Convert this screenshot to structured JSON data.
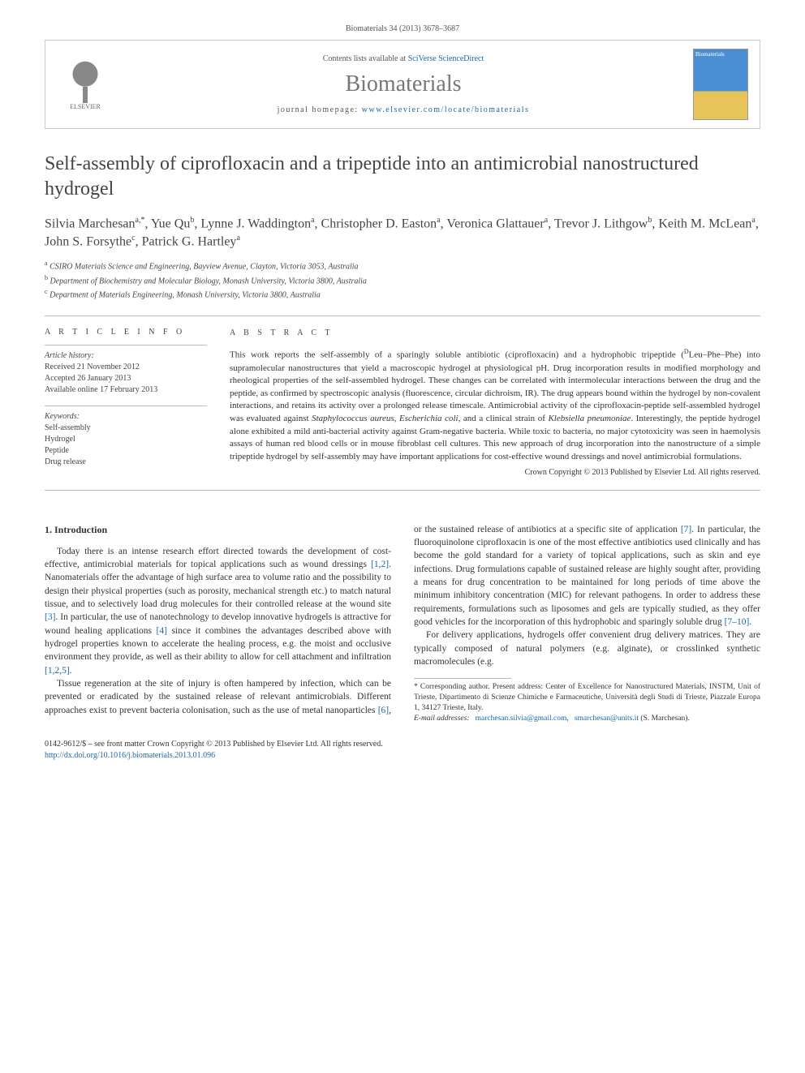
{
  "citation": "Biomaterials 34 (2013) 3678–3687",
  "header": {
    "contents_prefix": "Contents lists available at ",
    "contents_link": "SciVerse ScienceDirect",
    "journal": "Biomaterials",
    "homepage_prefix": "journal homepage: ",
    "homepage_url": "www.elsevier.com/locate/biomaterials",
    "publisher": "ELSEVIER",
    "cover_label": "Biomaterials"
  },
  "title": "Self-assembly of ciprofloxacin and a tripeptide into an antimicrobial nanostructured hydrogel",
  "authors_html": "Silvia Marchesan <sup>a,*</sup>, Yue Qu <sup>b</sup>, Lynne J. Waddington <sup>a</sup>, Christopher D. Easton <sup>a</sup>, Veronica Glattauer <sup>a</sup>, Trevor J. Lithgow <sup>b</sup>, Keith M. McLean <sup>a</sup>, John S. Forsythe <sup>c</sup>, Patrick G. Hartley <sup>a</sup>",
  "affiliations": {
    "a": "CSIRO Materials Science and Engineering, Bayview Avenue, Clayton, Victoria 3053, Australia",
    "b": "Department of Biochemistry and Molecular Biology, Monash University, Victoria 3800, Australia",
    "c": "Department of Materials Engineering, Monash University, Victoria 3800, Australia"
  },
  "info": {
    "heading": "A R T I C L E   I N F O",
    "history_label": "Article history:",
    "received": "Received 21 November 2012",
    "accepted": "Accepted 26 January 2013",
    "online": "Available online 17 February 2013",
    "keywords_label": "Keywords:",
    "keywords": [
      "Self-assembly",
      "Hydrogel",
      "Peptide",
      "Drug release"
    ]
  },
  "abstract": {
    "heading": "A B S T R A C T",
    "text": "This work reports the self-assembly of a sparingly soluble antibiotic (ciprofloxacin) and a hydrophobic tripeptide (DLeu–Phe–Phe) into supramolecular nanostructures that yield a macroscopic hydrogel at physiological pH. Drug incorporation results in modified morphology and rheological properties of the self-assembled hydrogel. These changes can be correlated with intermolecular interactions between the drug and the peptide, as confirmed by spectroscopic analysis (fluorescence, circular dichroism, IR). The drug appears bound within the hydrogel by non-covalent interactions, and retains its activity over a prolonged release timescale. Antimicrobial activity of the ciprofloxacin-peptide self-assembled hydrogel was evaluated against Staphylococcus aureus, Escherichia coli, and a clinical strain of Klebsiella pneumoniae. Interestingly, the peptide hydrogel alone exhibited a mild anti-bacterial activity against Gram-negative bacteria. While toxic to bacteria, no major cytotoxicity was seen in haemolysis assays of human red blood cells or in mouse fibroblast cell cultures. This new approach of drug incorporation into the nanostructure of a simple tripeptide hydrogel by self-assembly may have important applications for cost-effective wound dressings and novel antimicrobial formulations.",
    "copyright": "Crown Copyright © 2013 Published by Elsevier Ltd. All rights reserved."
  },
  "intro": {
    "heading": "1. Introduction",
    "p1": "Today there is an intense research effort directed towards the development of cost-effective, antimicrobial materials for topical applications such as wound dressings [1,2]. Nanomaterials offer the advantage of high surface area to volume ratio and the possibility to design their physical properties (such as porosity, mechanical strength etc.) to match natural tissue, and to selectively load drug molecules for their controlled release at the wound site [3]. In particular, the use of nanotechnology to develop innovative hydrogels is attractive for wound healing applications [4] since it combines the advantages described above with hydrogel properties known to accelerate the healing process, e.g. the moist and ",
    "p1b": "occlusive environment they provide, as well as their ability to allow for cell attachment and infiltration [1,2,5].",
    "p2": "Tissue regeneration at the site of injury is often hampered by infection, which can be prevented or eradicated by the sustained release of relevant antimicrobials. Different approaches exist to prevent bacteria colonisation, such as the use of metal nanoparticles [6], or the sustained release of antibiotics at a specific site of application [7]. In particular, the fluoroquinolone ciprofloxacin is one of the most effective antibiotics used clinically and has become the gold standard for a variety of topical applications, such as skin and eye infections. Drug formulations capable of sustained release are highly sought after, providing a means for drug concentration to be maintained for long periods of time above the minimum inhibitory concentration (MIC) for relevant pathogens. In order to address these requirements, formulations such as liposomes and gels are typically studied, as they offer good vehicles for the incorporation of this hydrophobic and sparingly soluble drug [7–10].",
    "p3": "For delivery applications, hydrogels offer convenient drug delivery matrices. They are typically composed of natural polymers (e.g. alginate), or crosslinked synthetic macromolecules (e.g."
  },
  "footnote": {
    "corr": "* Corresponding author. Present address: Center of Excellence for Nanostructured Materials, INSTM, Unit of Trieste, Dipartimento di Scienze Chimiche e Farmaceutiche, Università degli Studi di Trieste, Piazzale Europa 1, 34127 Trieste, Italy.",
    "email_label": "E-mail addresses:",
    "email1": "marchesan.silvia@gmail.com",
    "email2": "smarchesan@units.it",
    "email_person": "(S. Marchesan)."
  },
  "footer": {
    "line1": "0142-9612/$ – see front matter Crown Copyright © 2013 Published by Elsevier Ltd. All rights reserved.",
    "doi": "http://dx.doi.org/10.1016/j.biomaterials.2013.01.096"
  },
  "colors": {
    "link": "#1b66aa",
    "rule": "#bbbbbb",
    "text": "#333333",
    "muted": "#555555"
  }
}
